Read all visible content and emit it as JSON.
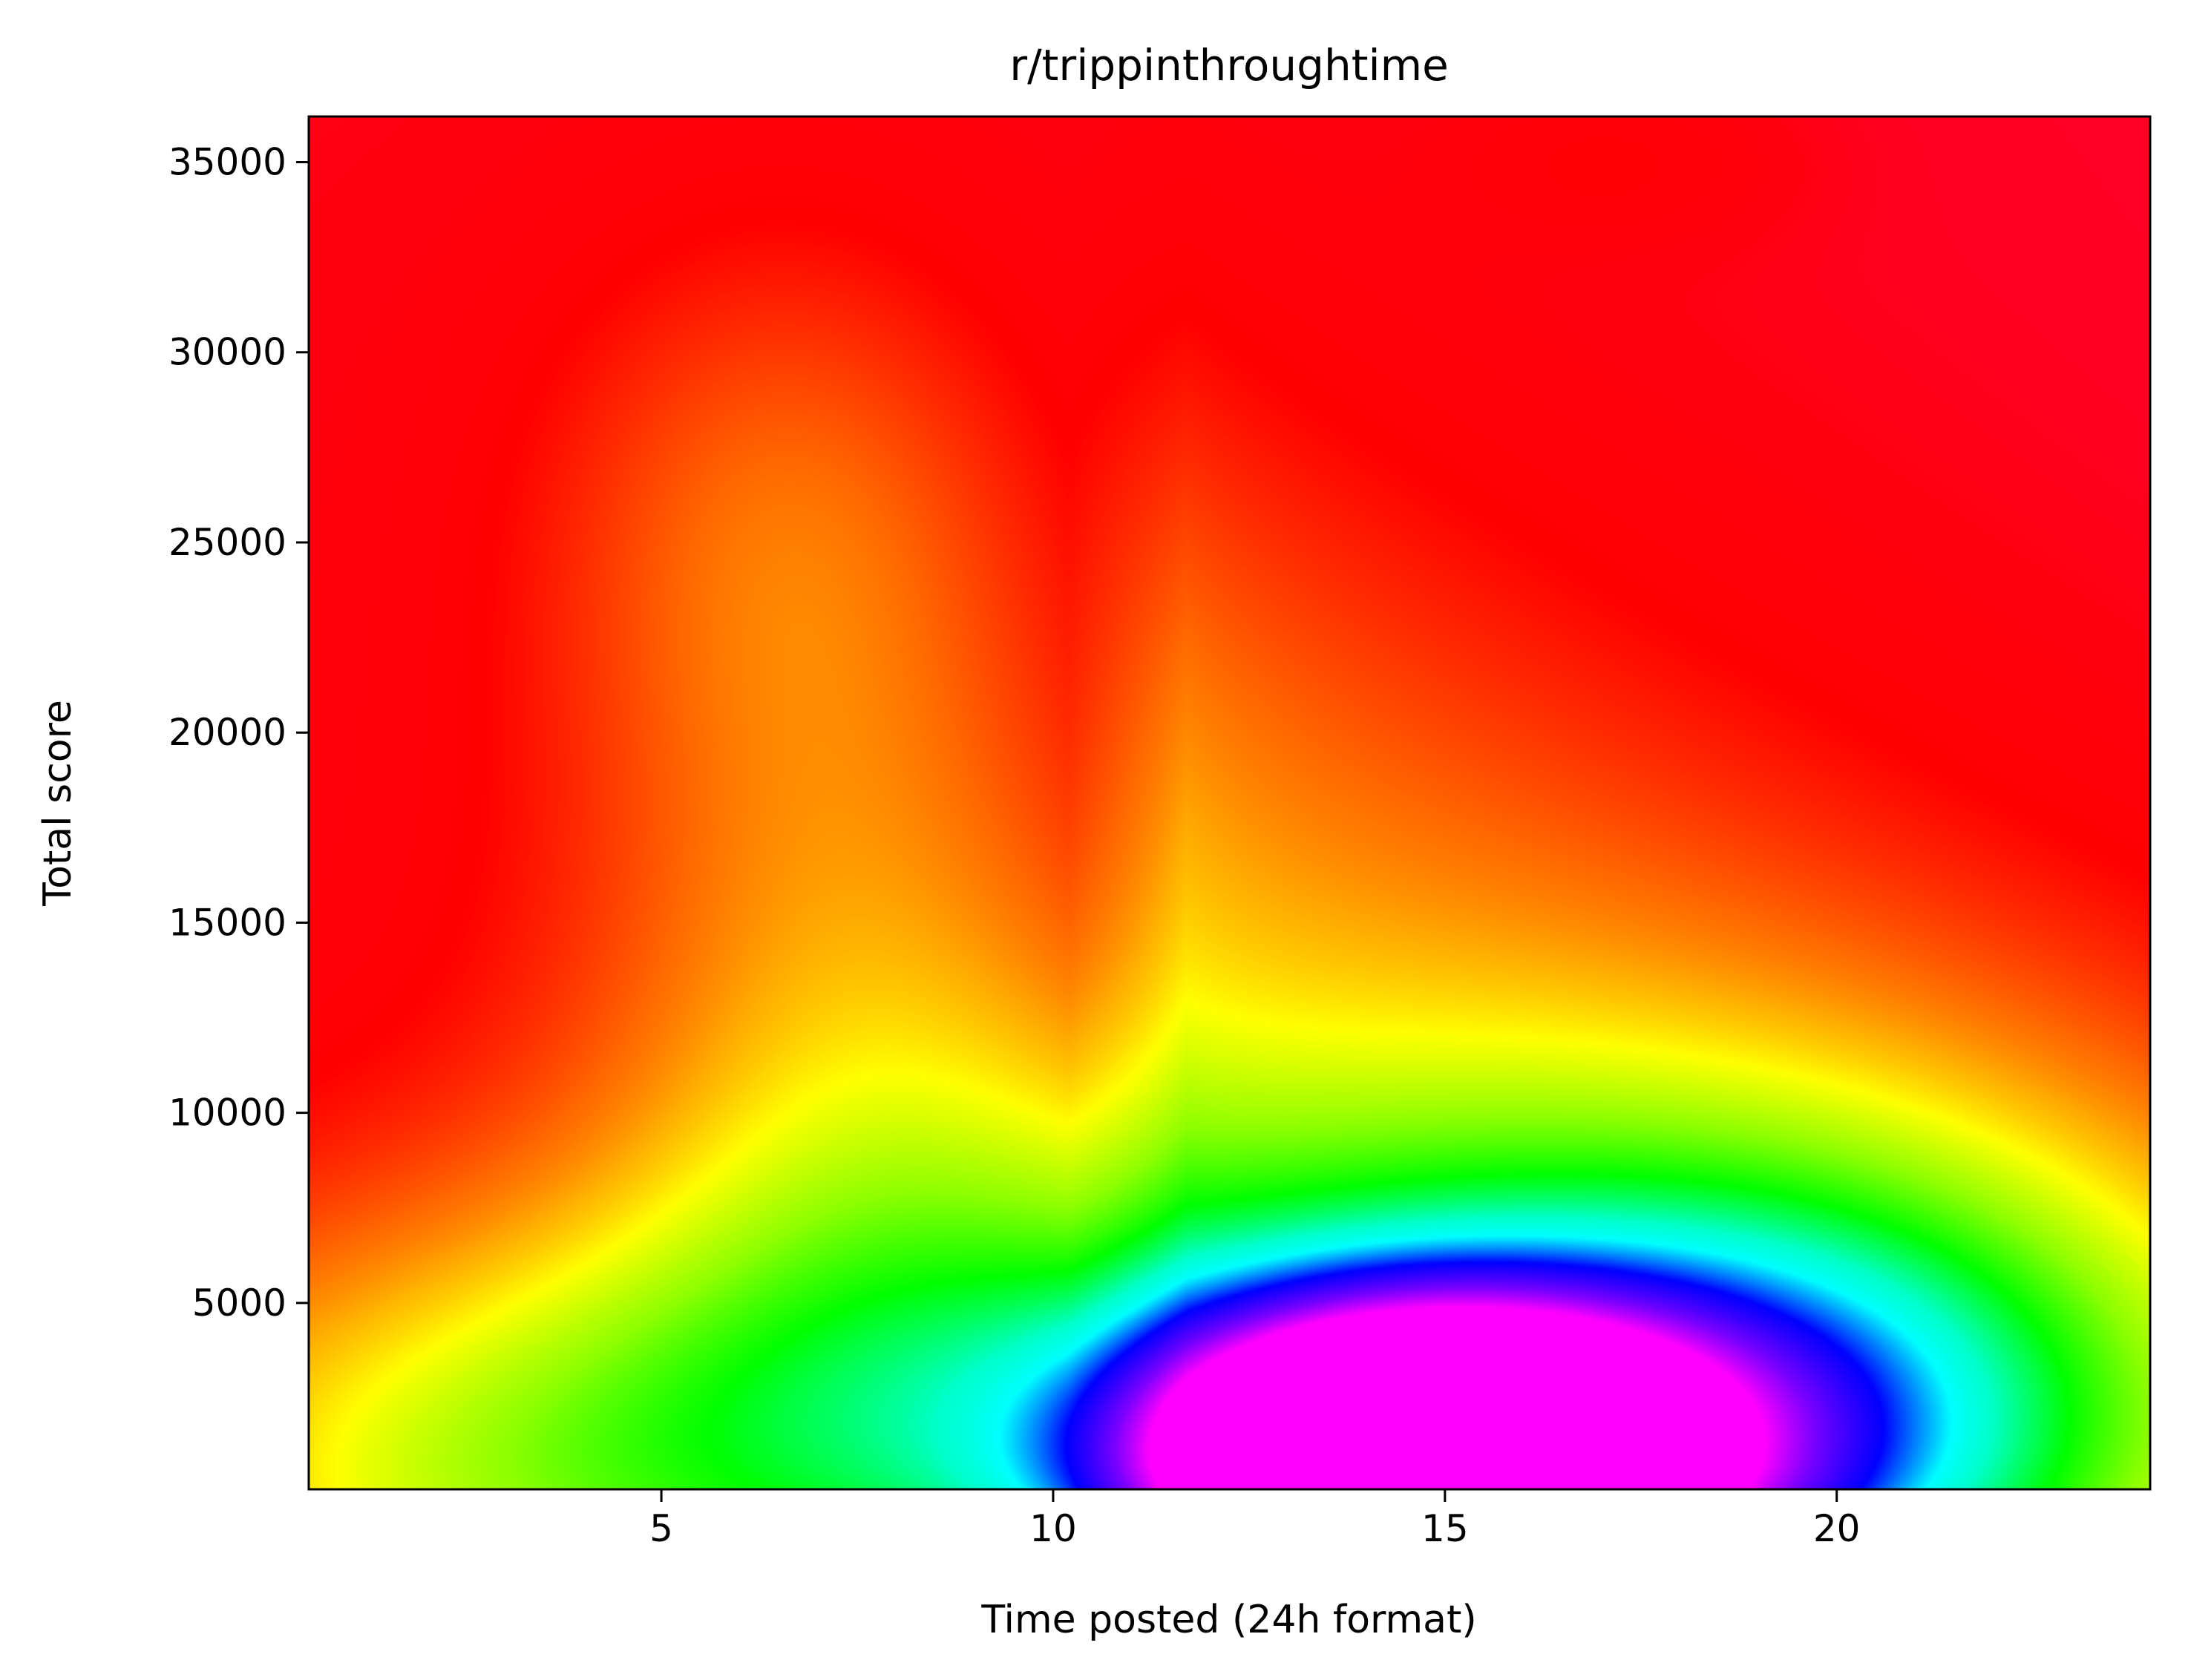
{
  "chart_data": {
    "type": "heatmap",
    "title": "r/trippinthroughtime",
    "xlabel": "Time posted (24h format)",
    "ylabel": "Total score",
    "xlim": [
      0.5,
      24
    ],
    "ylim": [
      100,
      36200
    ],
    "x_ticks": [
      5,
      10,
      15,
      20
    ],
    "y_ticks": [
      5000,
      10000,
      15000,
      20000,
      25000,
      30000,
      35000
    ],
    "colormap": "gist_rainbow",
    "colors": {
      "max_density": "#ff00ff",
      "high": "#0000ff",
      "mid_high": "#00ffff",
      "mid": "#00ff00",
      "mid_low": "#ffff00",
      "low": "#ff8000",
      "min_density": "#ff0030"
    },
    "density_peaks": [
      {
        "x": 14.8,
        "y": 900,
        "level": 1.0
      },
      {
        "x": 12.0,
        "y": 2500,
        "level": 0.35
      },
      {
        "x": 3.0,
        "y": 500,
        "level": 0.26
      },
      {
        "x": 7.5,
        "y": 12000,
        "level": 0.2
      },
      {
        "x": 6.5,
        "y": 25500,
        "level": 0.12
      },
      {
        "x": 17.2,
        "y": 35000,
        "level": 0.05
      }
    ]
  }
}
